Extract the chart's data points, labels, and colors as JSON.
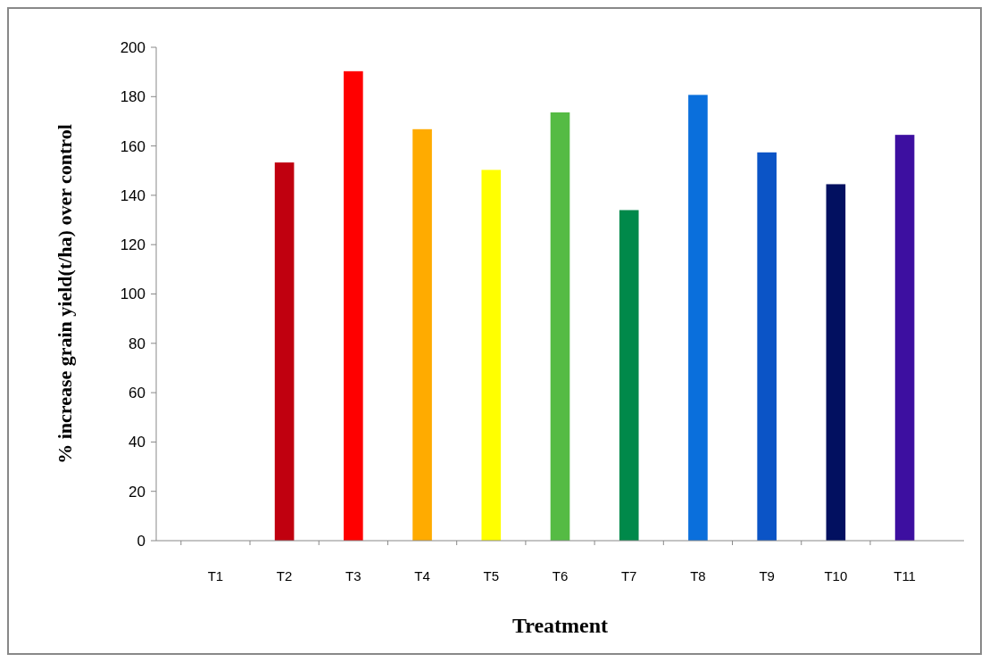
{
  "chart_data": {
    "type": "bar",
    "xlabel": "Treatment",
    "ylabel": "% increase grain yield(t/ha) over control",
    "categories": [
      "T1",
      "T2",
      "T3",
      "T4",
      "T5",
      "T6",
      "T7",
      "T8",
      "T9",
      "T10",
      "T11"
    ],
    "values": [
      0,
      153.3,
      190.3,
      166.8,
      150.3,
      173.6,
      134,
      180.7,
      157.4,
      144.5,
      164.5
    ],
    "colors": [
      "#c00000",
      "#c0000f",
      "#ff0000",
      "#ffab00",
      "#ffff00",
      "#55bb44",
      "#00894a",
      "#0a6fdc",
      "#0b54c6",
      "#021060",
      "#3d0fa0"
    ],
    "ylim": [
      0,
      200
    ],
    "yticks": [
      0,
      20,
      40,
      60,
      80,
      100,
      120,
      140,
      160,
      180,
      200
    ],
    "grid": false
  }
}
